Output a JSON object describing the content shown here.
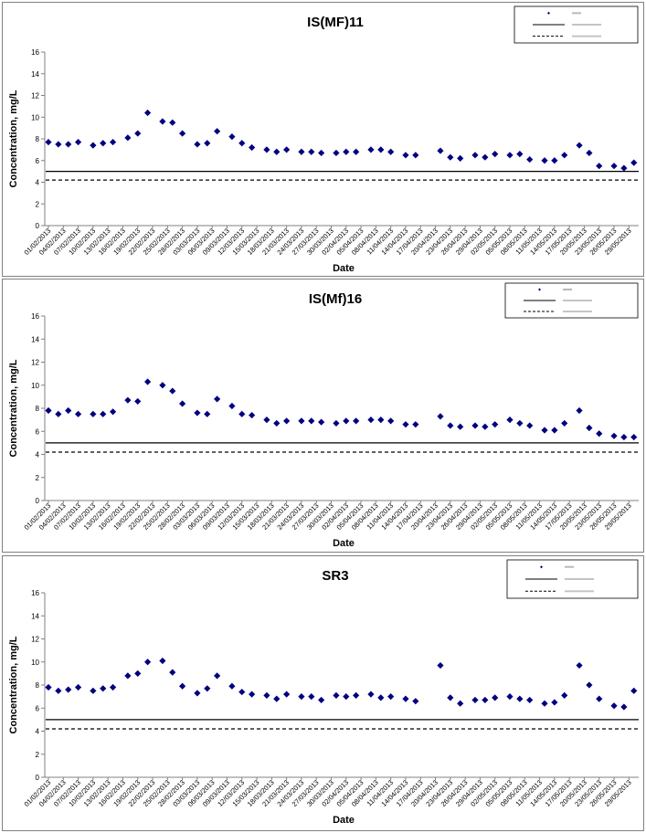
{
  "chart_data": [
    {
      "type": "scatter",
      "title": "IS(MF)11",
      "xlabel": "Date",
      "ylabel": "Concentration, mg/L",
      "ylim": [
        0,
        16
      ],
      "yticks": [
        0,
        2,
        4,
        6,
        8,
        10,
        12,
        14,
        16
      ],
      "x_tick_labels": [
        "01/02/2013",
        "04/02/2013",
        "07/02/2013",
        "10/02/2013",
        "13/02/2013",
        "16/02/2013",
        "19/02/2013",
        "22/02/2013",
        "25/02/2013",
        "28/02/2013",
        "03/03/2013",
        "06/03/2013",
        "09/03/2013",
        "12/03/2013",
        "15/03/2013",
        "18/03/2013",
        "21/03/2013",
        "24/03/2013",
        "27/03/2013",
        "30/03/2013",
        "02/04/2013",
        "05/04/2013",
        "08/04/2013",
        "11/04/2013",
        "14/04/2013",
        "17/04/2013",
        "20/04/2013",
        "23/04/2013",
        "26/04/2013",
        "29/04/2013",
        "02/05/2013",
        "05/05/2013",
        "08/05/2013",
        "11/05/2013",
        "14/05/2013",
        "17/05/2013",
        "20/05/2013",
        "23/05/2013",
        "26/05/2013",
        "29/05/2013"
      ],
      "grid": false,
      "legend_position": "top-right",
      "reference_lines": [
        {
          "style": "solid",
          "y": 5.0
        },
        {
          "style": "dashed",
          "y": 4.2
        }
      ],
      "points": [
        [
          "01/02/2013",
          7.7
        ],
        [
          "03/02/2013",
          7.5
        ],
        [
          "05/02/2013",
          7.5
        ],
        [
          "07/02/2013",
          7.7
        ],
        [
          "10/02/2013",
          7.4
        ],
        [
          "12/02/2013",
          7.6
        ],
        [
          "14/02/2013",
          7.7
        ],
        [
          "17/02/2013",
          8.1
        ],
        [
          "19/02/2013",
          8.5
        ],
        [
          "21/02/2013",
          10.4
        ],
        [
          "24/02/2013",
          9.6
        ],
        [
          "26/02/2013",
          9.5
        ],
        [
          "28/02/2013",
          8.5
        ],
        [
          "03/03/2013",
          7.5
        ],
        [
          "05/03/2013",
          7.6
        ],
        [
          "07/03/2013",
          8.7
        ],
        [
          "10/03/2013",
          8.2
        ],
        [
          "12/03/2013",
          7.6
        ],
        [
          "14/03/2013",
          7.2
        ],
        [
          "17/03/2013",
          7.0
        ],
        [
          "19/03/2013",
          6.8
        ],
        [
          "21/03/2013",
          7.0
        ],
        [
          "24/03/2013",
          6.8
        ],
        [
          "26/03/2013",
          6.8
        ],
        [
          "28/03/2013",
          6.7
        ],
        [
          "31/03/2013",
          6.7
        ],
        [
          "02/04/2013",
          6.8
        ],
        [
          "04/04/2013",
          6.8
        ],
        [
          "07/04/2013",
          7.0
        ],
        [
          "09/04/2013",
          7.0
        ],
        [
          "11/04/2013",
          6.8
        ],
        [
          "14/04/2013",
          6.5
        ],
        [
          "16/04/2013",
          6.5
        ],
        [
          "21/04/2013",
          6.9
        ],
        [
          "23/04/2013",
          6.3
        ],
        [
          "25/04/2013",
          6.2
        ],
        [
          "28/04/2013",
          6.5
        ],
        [
          "30/04/2013",
          6.3
        ],
        [
          "02/05/2013",
          6.6
        ],
        [
          "05/05/2013",
          6.5
        ],
        [
          "07/05/2013",
          6.6
        ],
        [
          "09/05/2013",
          6.1
        ],
        [
          "12/05/2013",
          6.0
        ],
        [
          "14/05/2013",
          6.0
        ],
        [
          "16/05/2013",
          6.5
        ],
        [
          "19/05/2013",
          7.4
        ],
        [
          "21/05/2013",
          6.7
        ],
        [
          "23/05/2013",
          5.5
        ],
        [
          "26/05/2013",
          5.5
        ],
        [
          "28/05/2013",
          5.3
        ],
        [
          "30/05/2013",
          5.8
        ]
      ]
    },
    {
      "type": "scatter",
      "title": "IS(Mf)16",
      "xlabel": "Date",
      "ylabel": "Concentration, mg/L",
      "ylim": [
        0,
        16
      ],
      "yticks": [
        0,
        2,
        4,
        6,
        8,
        10,
        12,
        14,
        16
      ],
      "x_tick_labels": [
        "01/02/2013",
        "04/02/2013",
        "07/02/2013",
        "10/02/2013",
        "13/02/2013",
        "16/02/2013",
        "19/02/2013",
        "22/02/2013",
        "25/02/2013",
        "28/02/2013",
        "03/03/2013",
        "06/03/2013",
        "09/03/2013",
        "12/03/2013",
        "15/03/2013",
        "18/03/2013",
        "21/03/2013",
        "24/03/2013",
        "27/03/2013",
        "30/03/2013",
        "02/04/2013",
        "05/04/2013",
        "08/04/2013",
        "11/04/2013",
        "14/04/2013",
        "17/04/2013",
        "20/04/2013",
        "23/04/2013",
        "26/04/2013",
        "29/04/2013",
        "02/05/2013",
        "05/05/2013",
        "08/05/2013",
        "11/05/2013",
        "14/05/2013",
        "17/05/2013",
        "20/05/2013",
        "23/05/2013",
        "26/05/2013",
        "29/05/2013"
      ],
      "grid": false,
      "legend_position": "top-right",
      "reference_lines": [
        {
          "style": "solid",
          "y": 5.0
        },
        {
          "style": "dashed",
          "y": 4.2
        }
      ],
      "points": [
        [
          "01/02/2013",
          7.8
        ],
        [
          "03/02/2013",
          7.5
        ],
        [
          "05/02/2013",
          7.8
        ],
        [
          "07/02/2013",
          7.5
        ],
        [
          "10/02/2013",
          7.5
        ],
        [
          "12/02/2013",
          7.5
        ],
        [
          "14/02/2013",
          7.7
        ],
        [
          "17/02/2013",
          8.7
        ],
        [
          "19/02/2013",
          8.6
        ],
        [
          "21/02/2013",
          10.3
        ],
        [
          "24/02/2013",
          10.0
        ],
        [
          "26/02/2013",
          9.5
        ],
        [
          "28/02/2013",
          8.4
        ],
        [
          "03/03/2013",
          7.6
        ],
        [
          "05/03/2013",
          7.5
        ],
        [
          "07/03/2013",
          8.8
        ],
        [
          "10/03/2013",
          8.2
        ],
        [
          "12/03/2013",
          7.5
        ],
        [
          "14/03/2013",
          7.4
        ],
        [
          "17/03/2013",
          7.0
        ],
        [
          "19/03/2013",
          6.7
        ],
        [
          "21/03/2013",
          6.9
        ],
        [
          "24/03/2013",
          6.9
        ],
        [
          "26/03/2013",
          6.9
        ],
        [
          "28/03/2013",
          6.8
        ],
        [
          "31/03/2013",
          6.7
        ],
        [
          "02/04/2013",
          6.9
        ],
        [
          "04/04/2013",
          6.9
        ],
        [
          "07/04/2013",
          7.0
        ],
        [
          "09/04/2013",
          7.0
        ],
        [
          "11/04/2013",
          6.9
        ],
        [
          "14/04/2013",
          6.6
        ],
        [
          "16/04/2013",
          6.6
        ],
        [
          "21/04/2013",
          7.3
        ],
        [
          "23/04/2013",
          6.5
        ],
        [
          "25/04/2013",
          6.4
        ],
        [
          "28/04/2013",
          6.5
        ],
        [
          "30/04/2013",
          6.4
        ],
        [
          "02/05/2013",
          6.6
        ],
        [
          "05/05/2013",
          7.0
        ],
        [
          "07/05/2013",
          6.7
        ],
        [
          "09/05/2013",
          6.5
        ],
        [
          "12/05/2013",
          6.1
        ],
        [
          "14/05/2013",
          6.1
        ],
        [
          "16/05/2013",
          6.7
        ],
        [
          "19/05/2013",
          7.8
        ],
        [
          "21/05/2013",
          6.3
        ],
        [
          "23/05/2013",
          5.8
        ],
        [
          "26/05/2013",
          5.6
        ],
        [
          "28/05/2013",
          5.5
        ],
        [
          "30/05/2013",
          5.5
        ]
      ]
    },
    {
      "type": "scatter",
      "title": "SR3",
      "xlabel": "Date",
      "ylabel": "Concentration, mg/L",
      "ylim": [
        0,
        16
      ],
      "yticks": [
        0,
        2,
        4,
        6,
        8,
        10,
        12,
        14,
        16
      ],
      "x_tick_labels": [
        "01/02/2013",
        "04/02/2013",
        "07/02/2013",
        "10/02/2013",
        "13/02/2013",
        "16/02/2013",
        "19/02/2013",
        "22/02/2013",
        "25/02/2013",
        "28/02/2013",
        "03/03/2013",
        "06/03/2013",
        "09/03/2013",
        "12/03/2013",
        "15/03/2013",
        "18/03/2013",
        "21/03/2013",
        "24/03/2013",
        "27/03/2013",
        "30/03/2013",
        "02/04/2013",
        "05/04/2013",
        "08/04/2013",
        "11/04/2013",
        "14/04/2013",
        "17/04/2013",
        "20/04/2013",
        "23/04/2013",
        "26/04/2013",
        "29/04/2013",
        "02/05/2013",
        "05/05/2013",
        "08/05/2013",
        "11/05/2013",
        "14/05/2013",
        "17/05/2013",
        "20/05/2013",
        "23/05/2013",
        "26/05/2013",
        "29/05/2013"
      ],
      "grid": false,
      "legend_position": "top-right",
      "reference_lines": [
        {
          "style": "solid",
          "y": 5.0
        },
        {
          "style": "dashed",
          "y": 4.2
        }
      ],
      "points": [
        [
          "01/02/2013",
          7.8
        ],
        [
          "03/02/2013",
          7.5
        ],
        [
          "05/02/2013",
          7.6
        ],
        [
          "07/02/2013",
          7.8
        ],
        [
          "10/02/2013",
          7.5
        ],
        [
          "12/02/2013",
          7.7
        ],
        [
          "14/02/2013",
          7.8
        ],
        [
          "17/02/2013",
          8.8
        ],
        [
          "19/02/2013",
          9.0
        ],
        [
          "21/02/2013",
          10.0
        ],
        [
          "24/02/2013",
          10.1
        ],
        [
          "26/02/2013",
          9.1
        ],
        [
          "28/02/2013",
          7.9
        ],
        [
          "03/03/2013",
          7.3
        ],
        [
          "05/03/2013",
          7.7
        ],
        [
          "07/03/2013",
          8.8
        ],
        [
          "10/03/2013",
          7.9
        ],
        [
          "12/03/2013",
          7.4
        ],
        [
          "14/03/2013",
          7.2
        ],
        [
          "17/03/2013",
          7.1
        ],
        [
          "19/03/2013",
          6.8
        ],
        [
          "21/03/2013",
          7.2
        ],
        [
          "24/03/2013",
          7.0
        ],
        [
          "26/03/2013",
          7.0
        ],
        [
          "28/03/2013",
          6.7
        ],
        [
          "31/03/2013",
          7.1
        ],
        [
          "02/04/2013",
          7.0
        ],
        [
          "04/04/2013",
          7.1
        ],
        [
          "07/04/2013",
          7.2
        ],
        [
          "09/04/2013",
          6.9
        ],
        [
          "11/04/2013",
          7.0
        ],
        [
          "14/04/2013",
          6.8
        ],
        [
          "16/04/2013",
          6.6
        ],
        [
          "21/04/2013",
          9.7
        ],
        [
          "23/04/2013",
          6.9
        ],
        [
          "25/04/2013",
          6.4
        ],
        [
          "28/04/2013",
          6.7
        ],
        [
          "30/04/2013",
          6.7
        ],
        [
          "02/05/2013",
          6.9
        ],
        [
          "05/05/2013",
          7.0
        ],
        [
          "07/05/2013",
          6.8
        ],
        [
          "09/05/2013",
          6.7
        ],
        [
          "12/05/2013",
          6.4
        ],
        [
          "14/05/2013",
          6.5
        ],
        [
          "16/05/2013",
          7.1
        ],
        [
          "19/05/2013",
          9.7
        ],
        [
          "21/05/2013",
          8.0
        ],
        [
          "23/05/2013",
          6.8
        ],
        [
          "26/05/2013",
          6.2
        ],
        [
          "28/05/2013",
          6.1
        ],
        [
          "30/05/2013",
          7.5
        ]
      ]
    }
  ],
  "colors": {
    "marker": "#00007f",
    "line": "#000000",
    "axis": "#808080"
  }
}
